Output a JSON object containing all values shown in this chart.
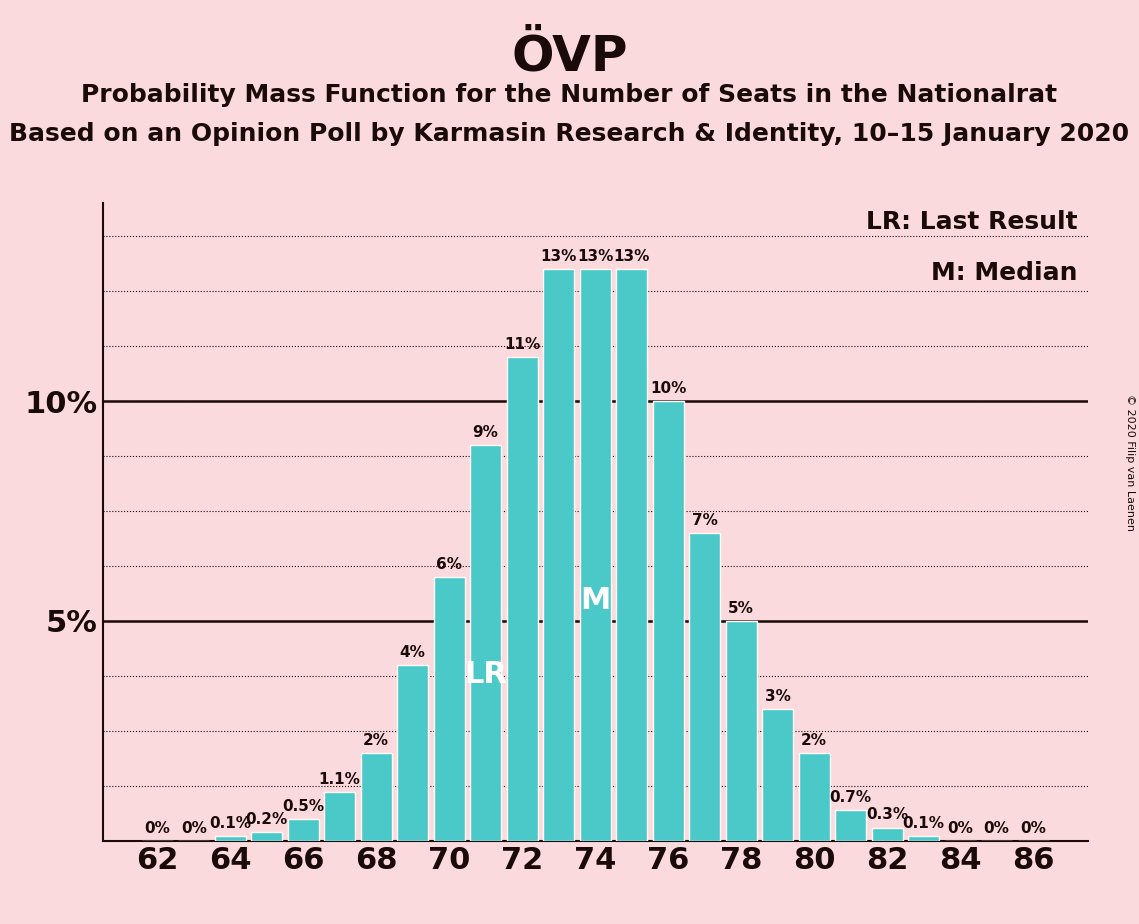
{
  "title": "ÖVP",
  "subtitle1": "Probability Mass Function for the Number of Seats in the Nationalrat",
  "subtitle2": "Based on an Opinion Poll by Karmasin Research & Identity, 10–15 January 2020",
  "copyright": "© 2020 Filip van Laenen",
  "legend_lr": "LR: Last Result",
  "legend_m": "M: Median",
  "seats": [
    62,
    63,
    64,
    65,
    66,
    67,
    68,
    69,
    70,
    71,
    72,
    73,
    74,
    75,
    76,
    77,
    78,
    79,
    80,
    81,
    82,
    83,
    84,
    85,
    86
  ],
  "values": [
    0.0,
    0.0,
    0.1,
    0.2,
    0.5,
    1.1,
    2.0,
    4.0,
    6.0,
    9.0,
    11.0,
    13.0,
    13.0,
    13.0,
    10.0,
    7.0,
    5.0,
    3.0,
    2.0,
    0.7,
    0.3,
    0.1,
    0.0,
    0.0,
    0.0
  ],
  "labels": [
    "0%",
    "0%",
    "0.1%",
    "0.2%",
    "0.5%",
    "1.1%",
    "2%",
    "4%",
    "6%",
    "9%",
    "11%",
    "13%",
    "13%",
    "13%",
    "10%",
    "7%",
    "5%",
    "3%",
    "2%",
    "0.7%",
    "0.3%",
    "0.1%",
    "0%",
    "0%",
    "0%"
  ],
  "xtick_seats": [
    62,
    64,
    66,
    68,
    70,
    72,
    74,
    76,
    78,
    80,
    82,
    84,
    86
  ],
  "bar_color": "#4BC8C8",
  "bar_edge_color": "#FFFFFF",
  "background_color": "#FADADD",
  "text_color": "#1a0a0a",
  "lr_seat": 71,
  "median_seat": 74,
  "ylim": [
    0,
    14.5
  ],
  "grid_yticks": [
    1.25,
    2.5,
    3.75,
    5.0,
    6.25,
    7.5,
    8.75,
    10.0,
    11.25,
    12.5,
    13.75
  ],
  "solid_lines": [
    5.0,
    10.0
  ],
  "title_fontsize": 36,
  "subtitle_fontsize": 18,
  "axis_fontsize": 22,
  "label_fontsize": 11,
  "legend_fontsize": 18,
  "copyright_fontsize": 8
}
